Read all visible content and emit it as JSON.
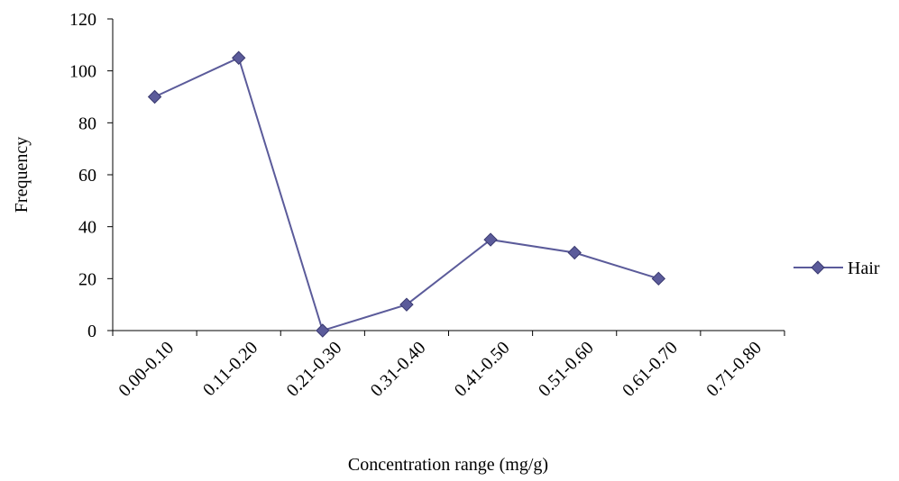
{
  "chart_data": {
    "type": "line",
    "title": "",
    "xlabel": "Concentration range (mg/g)",
    "ylabel": "Frequency",
    "categories": [
      "0.00-0.10",
      "0.11-0.20",
      "0.21-0.30",
      "0.31-0.40",
      "0.41-0.50",
      "0.51-0.60",
      "0.61-0.70",
      "0.71-0.80"
    ],
    "series": [
      {
        "name": "Hair",
        "values": [
          90,
          105,
          0,
          10,
          35,
          30,
          20,
          null
        ],
        "color": "#5b5b9a"
      }
    ],
    "ylim": [
      0,
      120
    ],
    "yticks": [
      0,
      20,
      40,
      60,
      80,
      100,
      120
    ],
    "grid": false,
    "legend": "right",
    "marker": "diamond"
  }
}
